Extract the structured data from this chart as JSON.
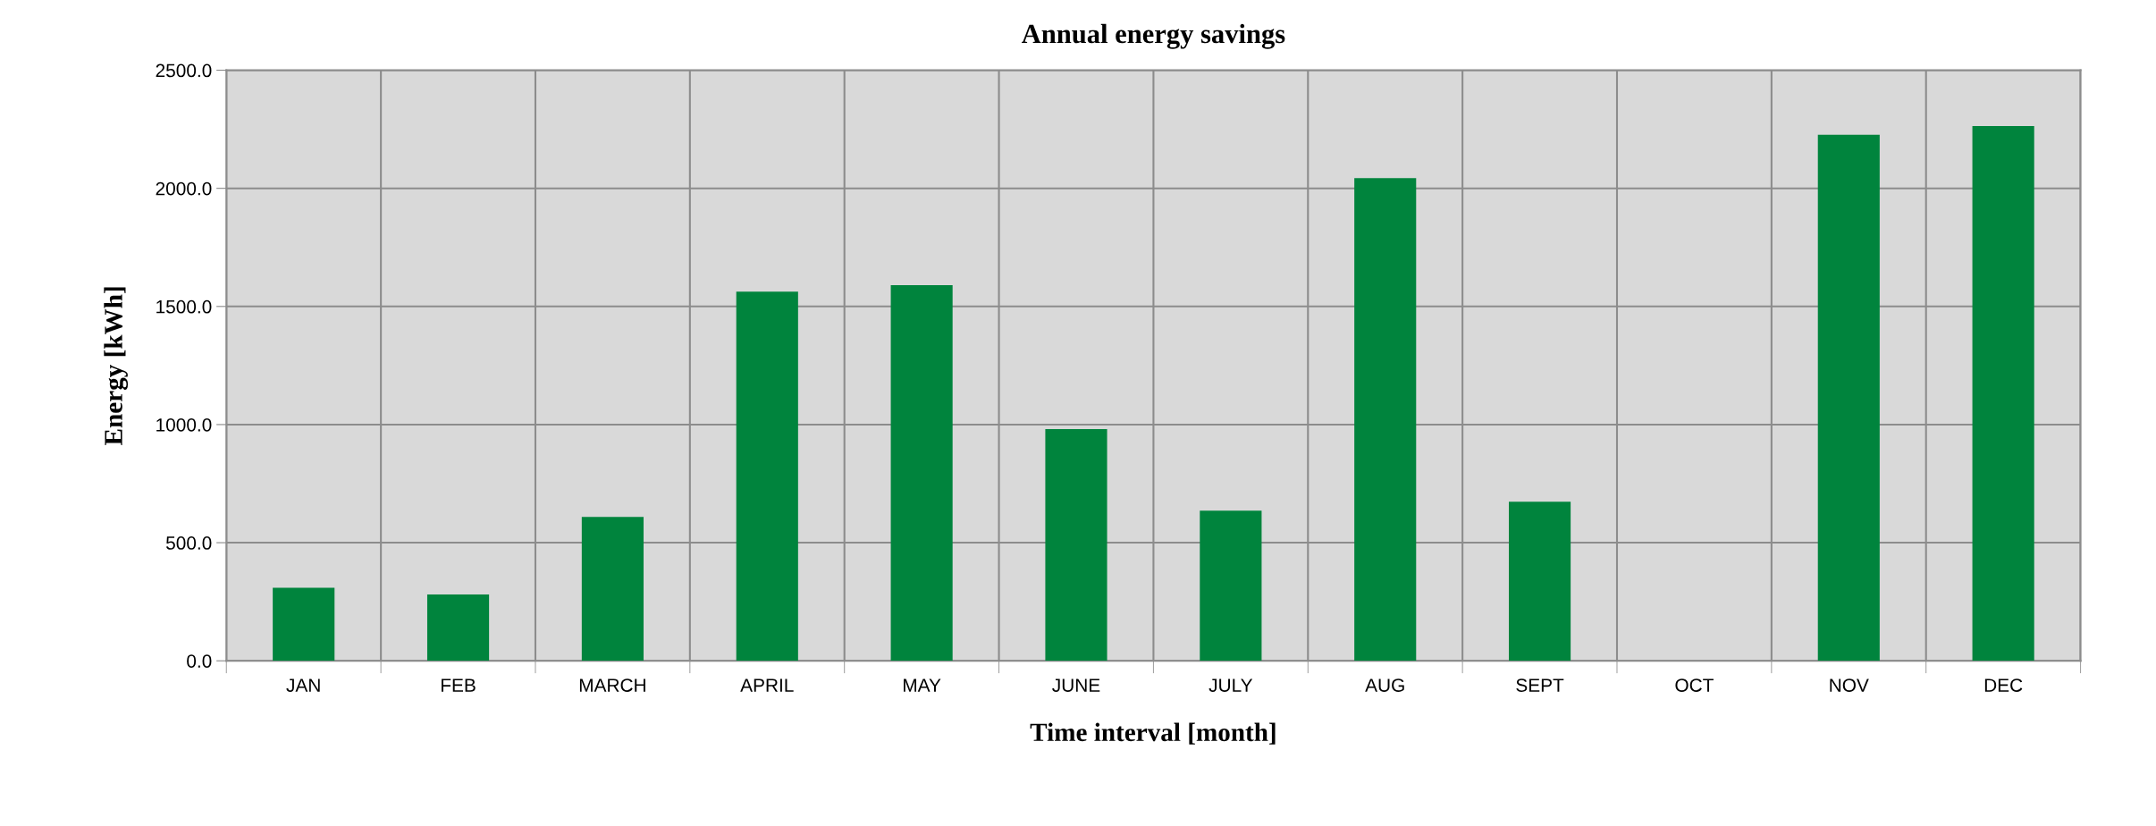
{
  "chart_data": {
    "type": "bar",
    "title": "Annual energy savings",
    "xlabel": "Time interval [month]",
    "ylabel": "Energy [kWh]",
    "categories": [
      "JAN",
      "FEB",
      "MARCH",
      "APRIL",
      "MAY",
      "JUNE",
      "JULY",
      "AUG",
      "SEPT",
      "OCT",
      "NOV",
      "DEC"
    ],
    "values": [
      309,
      281,
      609,
      1563,
      1590,
      981,
      636,
      2043,
      673,
      0,
      2227,
      2264
    ],
    "color": "#00843d",
    "ylim": [
      0,
      2500
    ],
    "yticks": [
      {
        "value": 0,
        "label": "0.0"
      },
      {
        "value": 500,
        "label": "500.0"
      },
      {
        "value": 1000,
        "label": "1000.0"
      },
      {
        "value": 1500,
        "label": "1500.0"
      },
      {
        "value": 2000,
        "label": "2000.0"
      },
      {
        "value": 2500,
        "label": "2500.0"
      }
    ],
    "grid": true,
    "legend": false
  }
}
